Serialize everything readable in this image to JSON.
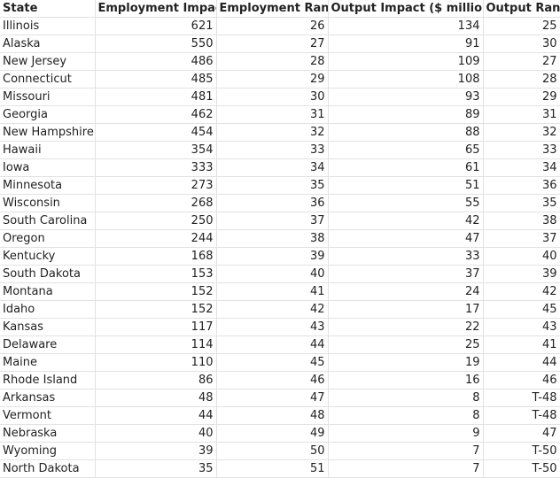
{
  "table": {
    "header": [
      "State",
      "Employment Impact",
      "Employment Rank",
      "Output Impact ($ millions)",
      "Output Rank"
    ],
    "rows": [
      [
        "Illinois",
        621,
        26,
        134,
        25
      ],
      [
        "Alaska",
        550,
        27,
        91,
        30
      ],
      [
        "New Jersey",
        486,
        28,
        109,
        27
      ],
      [
        "Connecticut",
        485,
        29,
        108,
        28
      ],
      [
        "Missouri",
        481,
        30,
        93,
        29
      ],
      [
        "Georgia",
        462,
        31,
        89,
        31
      ],
      [
        "New Hampshire",
        454,
        32,
        88,
        32
      ],
      [
        "Hawaii",
        354,
        33,
        65,
        33
      ],
      [
        "Iowa",
        333,
        34,
        61,
        34
      ],
      [
        "Minnesota",
        273,
        35,
        51,
        36
      ],
      [
        "Wisconsin",
        268,
        36,
        55,
        35
      ],
      [
        "South Carolina",
        250,
        37,
        42,
        38
      ],
      [
        "Oregon",
        244,
        38,
        47,
        37
      ],
      [
        "Kentucky",
        168,
        39,
        33,
        40
      ],
      [
        "South Dakota",
        153,
        40,
        37,
        39
      ],
      [
        "Montana",
        152,
        41,
        24,
        42
      ],
      [
        "Idaho",
        152,
        42,
        17,
        45
      ],
      [
        "Kansas",
        117,
        43,
        22,
        43
      ],
      [
        "Delaware",
        114,
        44,
        25,
        41
      ],
      [
        "Maine",
        110,
        45,
        19,
        44
      ],
      [
        "Rhode Island",
        86,
        46,
        16,
        46
      ],
      [
        "Arkansas",
        48,
        47,
        8,
        "T-48"
      ],
      [
        "Vermont",
        44,
        48,
        8,
        "T-48"
      ],
      [
        "Nebraska",
        40,
        49,
        9,
        47
      ],
      [
        "Wyoming",
        39,
        50,
        7,
        "T-50"
      ],
      [
        "North Dakota",
        35,
        51,
        7,
        "T-50"
      ]
    ]
  }
}
